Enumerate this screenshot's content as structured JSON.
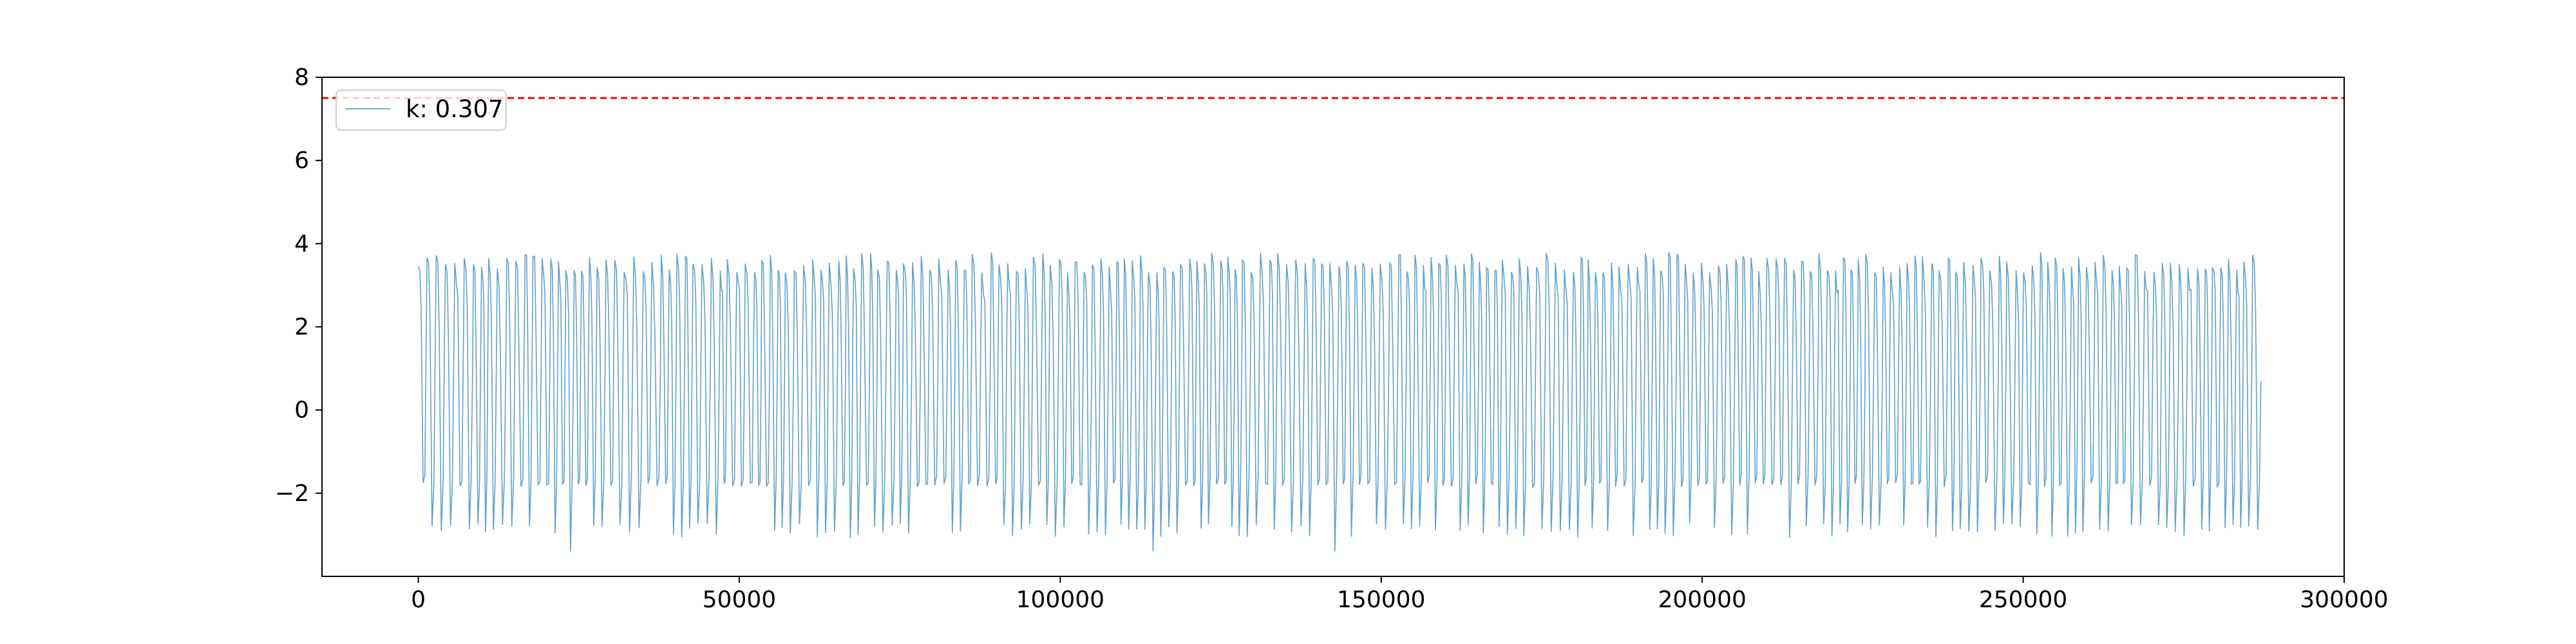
{
  "chart_data": {
    "type": "line",
    "title": "",
    "xlabel": "",
    "ylabel": "",
    "xlim": [
      -15000,
      300000
    ],
    "ylim": [
      -4,
      8
    ],
    "x_ticks": [
      0,
      50000,
      100000,
      150000,
      200000,
      250000,
      300000
    ],
    "x_tick_labels": [
      "0",
      "50000",
      "100000",
      "150000",
      "200000",
      "250000",
      "300000"
    ],
    "y_ticks": [
      -2,
      0,
      2,
      4,
      6,
      8
    ],
    "y_tick_labels": [
      "−2",
      "0",
      "2",
      "4",
      "6",
      "8"
    ],
    "grid": false,
    "legend_position": "upper-left",
    "series": [
      {
        "name": "k: 0.307",
        "color": "#1f77b4",
        "style": "dense oscillating signal",
        "x_range": [
          0,
          286000
        ],
        "y_max_range": [
          3.3,
          3.8
        ],
        "y_min_levels": [
          -1.8,
          -2.9,
          -3.4
        ],
        "approx_cycle_length": 1300
      }
    ],
    "threshold_line": {
      "y": 7.5,
      "color": "#ff0000",
      "style": "dashed"
    }
  }
}
